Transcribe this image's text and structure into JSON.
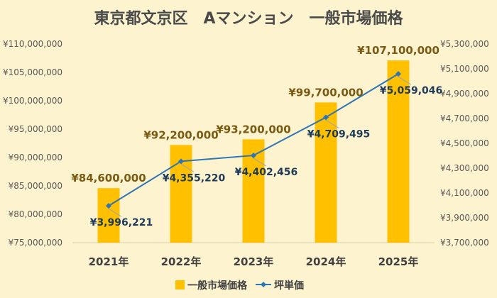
{
  "chart_data": {
    "type": "bar",
    "title": "東京都文京区　Aマンション　一般市場価格",
    "categories": [
      "2021年",
      "2022年",
      "2023年",
      "2024年",
      "2025年"
    ],
    "series": [
      {
        "name": "一般市場価格",
        "type": "bar",
        "axis": "left",
        "color": "#ffc000",
        "values": [
          84600000,
          92200000,
          93200000,
          99700000,
          107100000
        ],
        "labels": [
          "¥84,600,000",
          "¥92,200,000",
          "¥93,200,000",
          "¥99,700,000",
          "¥107,100,000"
        ]
      },
      {
        "name": "坪単価",
        "type": "line",
        "axis": "right",
        "color": "#2e75b6",
        "values": [
          3996221,
          4355220,
          4402456,
          4709495,
          5059046
        ],
        "labels": [
          "¥3,996,221",
          "¥4,355,220",
          "¥4,402,456",
          "¥4,709,495",
          "¥5,059,046"
        ]
      }
    ],
    "y_left": {
      "min": 75000000,
      "max": 110000000,
      "step": 5000000,
      "tick_labels": [
        "¥75,000,000",
        "¥80,000,000",
        "¥85,000,000",
        "¥90,000,000",
        "¥95,000,000",
        "¥100,000,000",
        "¥105,000,000",
        "¥110,000,000"
      ]
    },
    "y_right": {
      "min": 3700000,
      "max": 5300000,
      "step": 200000,
      "tick_labels": [
        "¥3,700,000",
        "¥3,900,000",
        "¥4,100,000",
        "¥4,300,000",
        "¥4,500,000",
        "¥4,700,000",
        "¥4,900,000",
        "¥5,100,000",
        "¥5,300,000"
      ]
    },
    "legend_position": "bottom",
    "grid": false
  }
}
